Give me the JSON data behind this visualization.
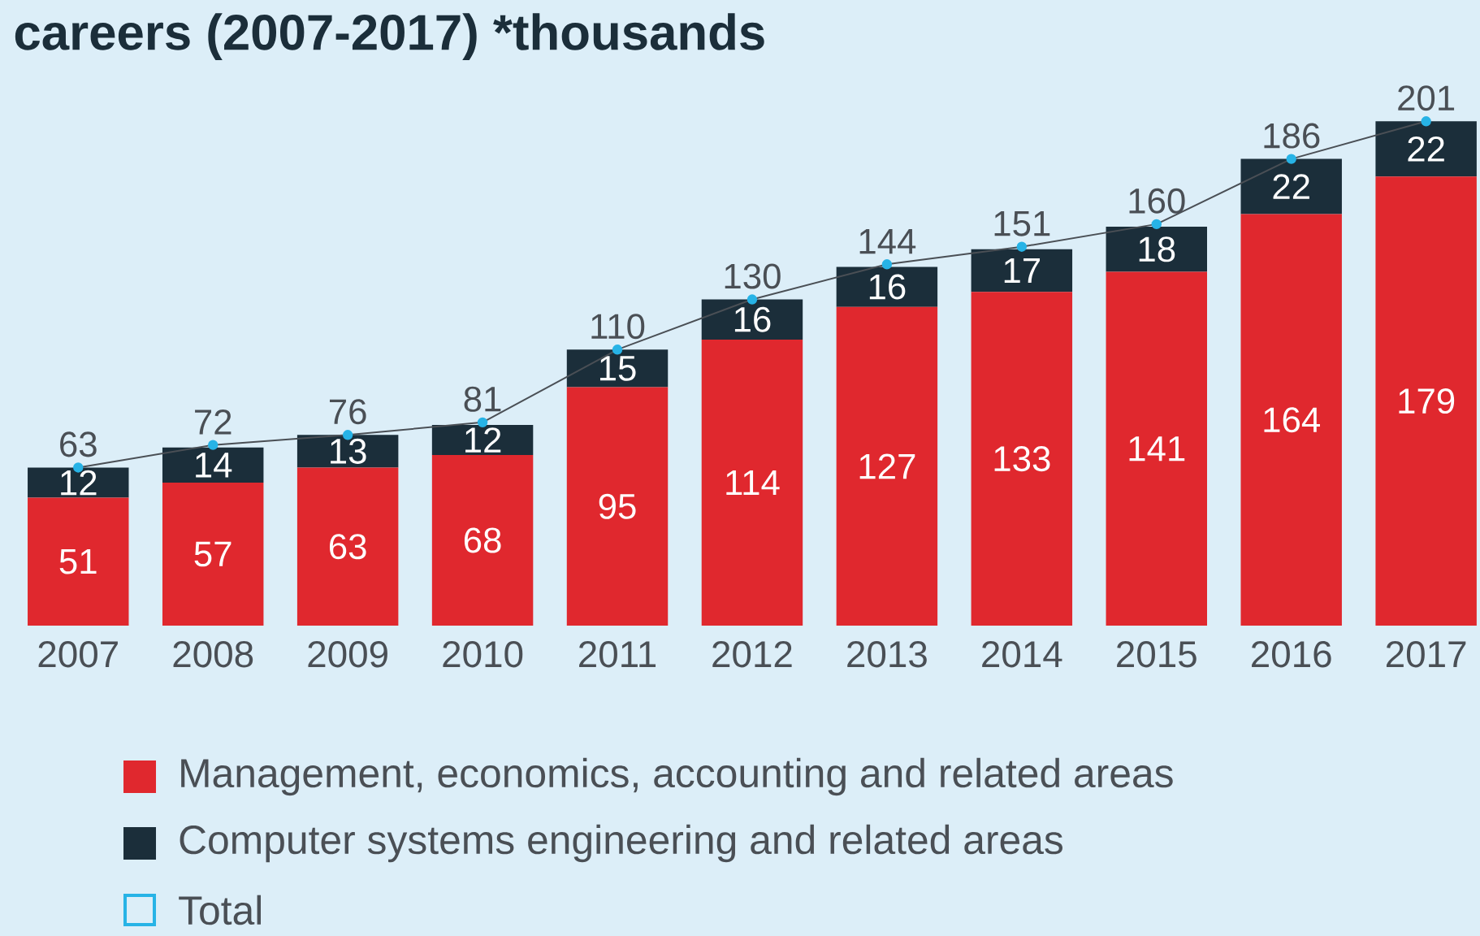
{
  "chart_data": {
    "type": "bar",
    "title": "careers (2007-2017) *thousands",
    "categories": [
      "2007",
      "2008",
      "2009",
      "2010",
      "2011",
      "2012",
      "2013",
      "2014",
      "2015",
      "2016",
      "2017"
    ],
    "series": [
      {
        "name": "Management, economics, accounting and related areas",
        "color": "#e0282e",
        "values": [
          51,
          57,
          63,
          68,
          95,
          114,
          127,
          133,
          141,
          164,
          179
        ]
      },
      {
        "name": "Computer systems engineering and related areas",
        "color": "#1b2e3a",
        "values": [
          12,
          14,
          13,
          12,
          15,
          16,
          16,
          17,
          18,
          22,
          22
        ]
      },
      {
        "name": "Total",
        "type": "line",
        "color": "#27b3e6",
        "marker": "circle",
        "values": [
          63,
          72,
          76,
          81,
          110,
          130,
          144,
          151,
          160,
          186,
          201
        ]
      }
    ],
    "stacked": true,
    "data_labels": true,
    "legend": "bottom"
  }
}
